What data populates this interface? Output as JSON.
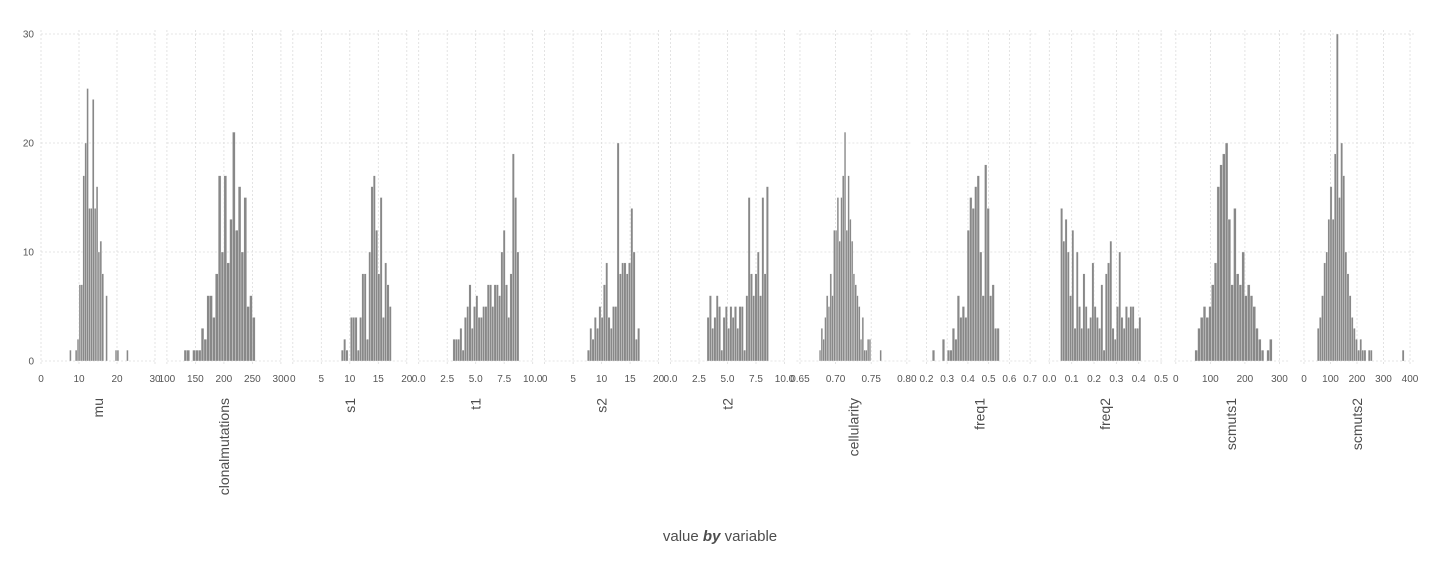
{
  "chart_data": {
    "type": "bar",
    "xlabel": {
      "pre": "value",
      "mid": "by",
      "post": "variable"
    },
    "ylim": [
      0,
      30
    ],
    "yticks": [
      0,
      10,
      20,
      30
    ],
    "grid": true,
    "bar_color": "#888888",
    "grid_color": "#dcdcdc",
    "text_color": "#4d4d4d",
    "panels": [
      {
        "label": "mu",
        "xlim": [
          0,
          30
        ],
        "xticks": [
          "0",
          "10",
          "20",
          "30"
        ],
        "tick_values": [
          0,
          10,
          20,
          30
        ],
        "bin_start": 7.5,
        "bin_width": 0.5,
        "counts": [
          1,
          0,
          0,
          1,
          2,
          7,
          7,
          17,
          20,
          25,
          14,
          14,
          24,
          14,
          16,
          10,
          11,
          8,
          0,
          6,
          0,
          0,
          0,
          0,
          1,
          1,
          0,
          0,
          0,
          0,
          1
        ]
      },
      {
        "label": "clonalmutations",
        "xlim": [
          100,
          300
        ],
        "xticks": [
          "100",
          "150",
          "200",
          "250",
          "300"
        ],
        "tick_values": [
          100,
          150,
          200,
          250,
          300
        ],
        "bin_start": 130,
        "bin_width": 5,
        "counts": [
          1,
          1,
          0,
          1,
          1,
          1,
          3,
          2,
          6,
          6,
          4,
          8,
          17,
          10,
          17,
          9,
          13,
          21,
          12,
          16,
          10,
          15,
          5,
          6,
          4
        ]
      },
      {
        "label": "s1",
        "xlim": [
          0,
          20
        ],
        "xticks": [
          "0",
          "5",
          "10",
          "15",
          "20"
        ],
        "tick_values": [
          0,
          5,
          10,
          15,
          20
        ],
        "bin_start": 8.5,
        "bin_width": 0.4,
        "counts": [
          1,
          2,
          1,
          0,
          4,
          4,
          4,
          1,
          4,
          8,
          8,
          2,
          10,
          16,
          17,
          12,
          8,
          15,
          4,
          9,
          7,
          5
        ]
      },
      {
        "label": "t1",
        "xlim": [
          0,
          10
        ],
        "xticks": [
          "0.0",
          "2.5",
          "5.0",
          "7.5",
          "10.0"
        ],
        "tick_values": [
          0,
          2.5,
          5,
          7.5,
          10
        ],
        "bin_start": 3.0,
        "bin_width": 0.2,
        "counts": [
          2,
          2,
          2,
          3,
          1,
          4,
          5,
          7,
          3,
          5,
          6,
          4,
          4,
          5,
          5,
          7,
          7,
          5,
          7,
          7,
          6,
          10,
          12,
          7,
          4,
          8,
          19,
          15,
          10
        ]
      },
      {
        "label": "s2",
        "xlim": [
          0,
          20
        ],
        "xticks": [
          "0",
          "5",
          "10",
          "15",
          "20"
        ],
        "tick_values": [
          0,
          5,
          10,
          15,
          20
        ],
        "bin_start": 7.5,
        "bin_width": 0.4,
        "counts": [
          1,
          3,
          2,
          4,
          3,
          5,
          4,
          7,
          9,
          4,
          3,
          5,
          5,
          20,
          8,
          9,
          9,
          8,
          9,
          14,
          10,
          2,
          3
        ]
      },
      {
        "label": "t2",
        "xlim": [
          0,
          10
        ],
        "xticks": [
          "0.0",
          "2.5",
          "5.0",
          "7.5",
          "10.0"
        ],
        "tick_values": [
          0,
          2.5,
          5,
          7.5,
          10
        ],
        "bin_start": 3.2,
        "bin_width": 0.2,
        "counts": [
          4,
          6,
          3,
          4,
          6,
          5,
          1,
          4,
          5,
          3,
          5,
          4,
          5,
          3,
          5,
          5,
          1,
          6,
          15,
          8,
          6,
          8,
          10,
          6,
          15,
          8,
          16
        ]
      },
      {
        "label": "cellularity",
        "xlim": [
          0.645,
          0.805
        ],
        "xticks": [
          "0.65",
          "0.70",
          "0.75",
          "0.80"
        ],
        "tick_values": [
          0.65,
          0.7,
          0.75,
          0.8
        ],
        "bin_start": 0.677,
        "bin_width": 0.0025,
        "counts": [
          1,
          3,
          2,
          4,
          6,
          5,
          8,
          6,
          12,
          12,
          15,
          11,
          15,
          17,
          21,
          12,
          17,
          13,
          11,
          8,
          7,
          6,
          5,
          2,
          4,
          1,
          1,
          2,
          2,
          0,
          0,
          0,
          0,
          0,
          1
        ]
      },
      {
        "label": "freq1",
        "xlim": [
          0.18,
          0.73
        ],
        "xticks": [
          "0.2",
          "0.3",
          "0.4",
          "0.5",
          "0.6",
          "0.7"
        ],
        "tick_values": [
          0.2,
          0.3,
          0.4,
          0.5,
          0.6,
          0.7
        ],
        "bin_start": 0.228,
        "bin_width": 0.012,
        "counts": [
          1,
          0,
          0,
          0,
          2,
          0,
          1,
          1,
          3,
          2,
          6,
          4,
          5,
          4,
          12,
          15,
          14,
          16,
          17,
          10,
          6,
          18,
          14,
          6,
          7,
          3,
          3
        ]
      },
      {
        "label": "freq2",
        "xlim": [
          -0.005,
          0.505
        ],
        "xticks": [
          "0.0",
          "0.1",
          "0.2",
          "0.3",
          "0.4",
          "0.5"
        ],
        "tick_values": [
          0.0,
          0.1,
          0.2,
          0.3,
          0.4,
          0.5
        ],
        "bin_start": 0.05,
        "bin_width": 0.01,
        "counts": [
          14,
          11,
          13,
          10,
          6,
          12,
          3,
          10,
          5,
          3,
          8,
          5,
          3,
          4,
          9,
          5,
          4,
          3,
          7,
          1,
          8,
          9,
          11,
          3,
          2,
          5,
          10,
          4,
          3,
          5,
          4,
          5,
          5,
          3,
          3,
          4
        ]
      },
      {
        "label": "scmuts1",
        "xlim": [
          -5,
          325
        ],
        "xticks": [
          "0",
          "100",
          "200",
          "300"
        ],
        "tick_values": [
          0,
          100,
          200,
          300
        ],
        "bin_start": 55,
        "bin_width": 8,
        "counts": [
          1,
          3,
          4,
          5,
          4,
          5,
          7,
          9,
          16,
          18,
          19,
          20,
          13,
          7,
          14,
          8,
          7,
          10,
          6,
          7,
          6,
          5,
          3,
          2,
          1,
          0,
          1,
          2
        ]
      },
      {
        "label": "scmuts2",
        "xlim": [
          -15,
          415
        ],
        "xticks": [
          "0",
          "100",
          "200",
          "300",
          "400"
        ],
        "tick_values": [
          0,
          100,
          200,
          300,
          400
        ],
        "bin_start": 50,
        "bin_width": 8,
        "counts": [
          3,
          4,
          6,
          9,
          10,
          13,
          16,
          13,
          19,
          30,
          15,
          20,
          17,
          10,
          8,
          6,
          4,
          3,
          2,
          1,
          2,
          1,
          1,
          0,
          1,
          1,
          0,
          0,
          0,
          0,
          0,
          0,
          0,
          0,
          0,
          0,
          0,
          0,
          0,
          0,
          1
        ]
      }
    ]
  }
}
